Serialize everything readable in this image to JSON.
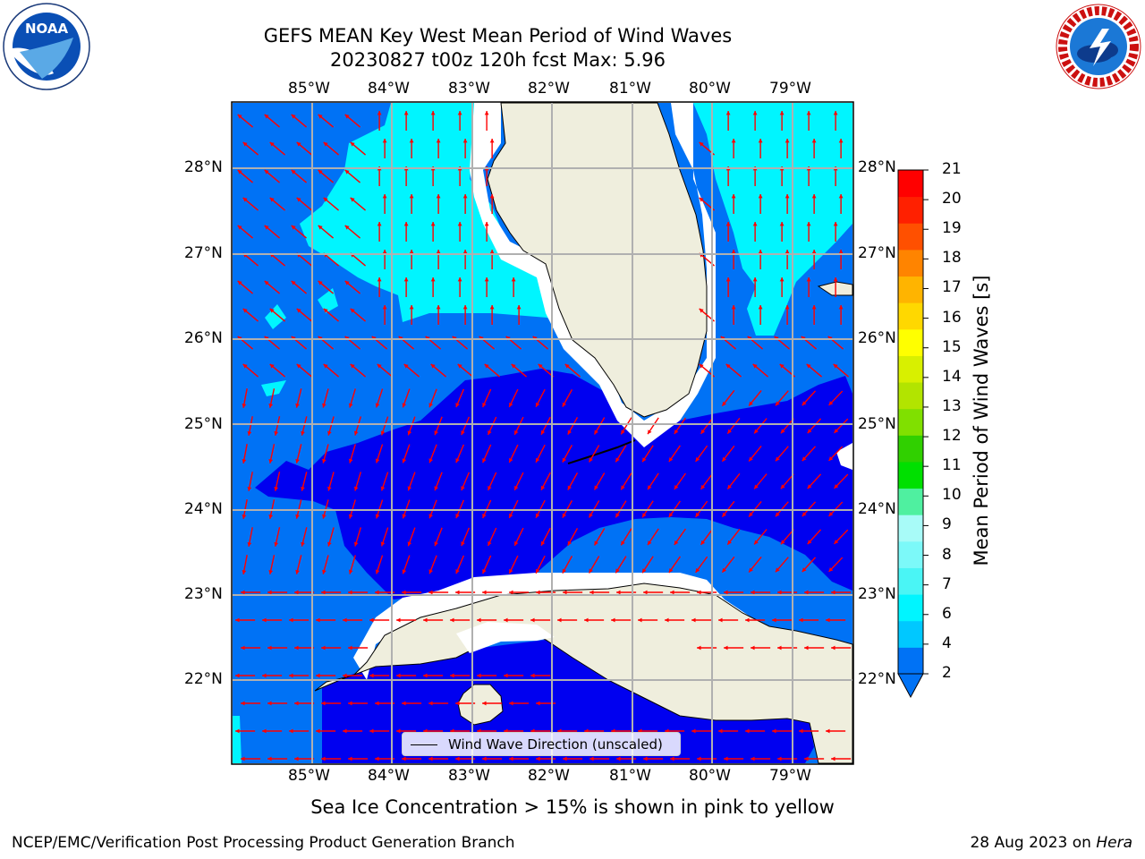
{
  "title": {
    "line1": "GEFS MEAN Key West Mean Period of Wind Waves",
    "line2": "20230827 t00z 120h fcst   Max: 5.96"
  },
  "logos": {
    "left": {
      "icon": "noaa-logo",
      "text": "NOAA"
    },
    "right": {
      "icon": "nws-logo",
      "text": "NATIONAL WEATHER SERVICE"
    }
  },
  "axes": {
    "lon_labels": [
      "85°W",
      "84°W",
      "83°W",
      "82°W",
      "81°W",
      "80°W",
      "79°W"
    ],
    "lat_labels": [
      "28°N",
      "27°N",
      "26°N",
      "25°N",
      "24°N",
      "23°N",
      "22°N"
    ]
  },
  "colorbar": {
    "title": "Mean Period of Wind Waves [s]",
    "ticks": [
      "2",
      "4",
      "6",
      "7",
      "8",
      "9",
      "10",
      "11",
      "12",
      "13",
      "14",
      "15",
      "16",
      "17",
      "18",
      "19",
      "20",
      "21"
    ],
    "colors": [
      "#0072f5",
      "#00c8ff",
      "#00f5ff",
      "#4af5f5",
      "#7cf9f9",
      "#a8fbf8",
      "#4ff0a0",
      "#00e000",
      "#30d000",
      "#80e000",
      "#b2e400",
      "#d8f000",
      "#ffff00",
      "#ffd800",
      "#ffb400",
      "#ff8400",
      "#ff5000",
      "#ff2000",
      "#ff0000"
    ]
  },
  "colors": {
    "band_2_4": "#0072f5",
    "band_4_6": "#00f5ff",
    "band_below_2": "#0000f0",
    "land": "#efeedd",
    "arrow": "#ff0000",
    "grid": "#b0b0b0"
  },
  "legend": {
    "label": "Wind Wave Direction (unscaled)"
  },
  "note": "Sea Ice Concentration > 15% is shown in pink to yellow",
  "footer": {
    "left": "NCEP/EMC/Verification Post Processing Product Generation Branch",
    "date": "28 Aug 2023 on ",
    "machine": "Hera"
  }
}
